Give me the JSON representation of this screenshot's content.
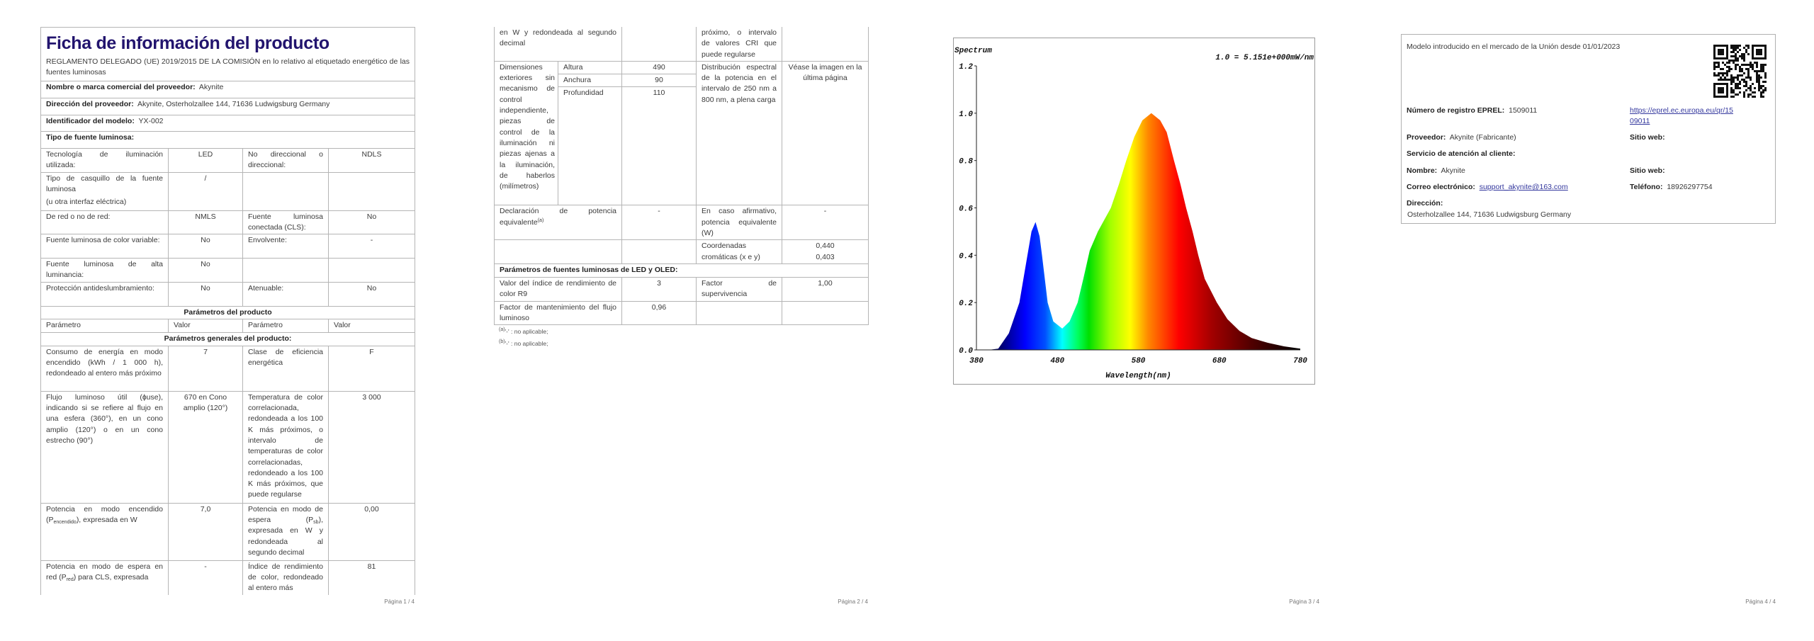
{
  "p1": {
    "title": "Ficha de información del producto",
    "regulation": "REGLAMENTO DELEGADO (UE) 2019/2015 DE LA COMISIÓN en lo relativo al etiquetado energético de las fuentes luminosas",
    "supplier_label": "Nombre o marca comercial del proveedor:",
    "supplier_value": "Akynite",
    "address_label": "Dirección del proveedor:",
    "address_value": "Akynite, Osterholzallee 144, 71636 Ludwigsburg Germany",
    "model_label": "Identificador del modelo:",
    "model_value": "YX-002",
    "type_label": "Tipo de fuente luminosa:",
    "type_rows": [
      [
        "Tecnología de iluminación utilizada:",
        "LED",
        "No direccional o direccional:",
        "NDLS"
      ],
      [
        "Tipo de casquillo de la fuente luminosa",
        "/",
        "",
        ""
      ],
      [
        "De red o no de red:",
        "NMLS",
        "Fuente luminosa conectada (CLS):",
        "No"
      ],
      [
        "Fuente luminosa de color variable:",
        "No",
        "Envolvente:",
        "-"
      ],
      [
        "Fuente luminosa de alta luminancia:",
        "No",
        "",
        ""
      ],
      [
        "Protección antideslumbramiento:",
        "No",
        "Atenuable:",
        "No"
      ]
    ],
    "cap_note": "(u otra interfaz eléctrica)",
    "params_title": "Parámetros del producto",
    "headers": [
      "Parámetro",
      "Valor",
      "Parámetro",
      "Valor"
    ],
    "general_title": "Parámetros generales del producto:",
    "gen": {
      "consumo": "Consumo de energía en modo encendido (kWh / 1 000 h), redondeado al entero más próximo",
      "consumo_val": "7",
      "clase": "Clase de eficiencia energética",
      "clase_val": "F",
      "flujo": "Flujo luminoso útil (ɸuse), indicando si se refiere al flujo en una esfera (360°), en un cono amplio (120°) o en un cono estrecho (90°)",
      "flujo_val": "670 en Cono amplio (120°)",
      "temp": "Temperatura de color correlacionada, redondeada a los 100 K más próximos, o intervalo de temperaturas de color correlacionadas, redondeado a los 100 K más próximos, que puede regularse",
      "temp_val": "3 000",
      "pon_pre": "Potencia en modo encendido (P",
      "pon_sub": "encendido",
      "pon_post": "), expresada en W",
      "pon_val": "7,0",
      "psb_pre": "Potencia en modo de espera (P",
      "psb_sub": "sb",
      "psb_post": "), expresada en W y redondeada al segundo decimal",
      "psb_val": "0,00",
      "pred_pre": "Potencia en modo de espera en red (P",
      "pred_sub": "red",
      "pred_post": ") para CLS, expresada",
      "pred_val": "-",
      "cri": "Índice de rendimiento de color, redondeado al entero más",
      "cri_val": "81"
    },
    "page_number": "Página 1 / 4"
  },
  "p2": {
    "cont_left": "en W y redondeada al segundo decimal",
    "cont_right": "próximo, o intervalo de valores CRI que puede regularse",
    "dim_label": "Dimensiones exteriores sin mecanismo de control independiente, piezas de control de la iluminación ni piezas ajenas a la iluminación, de haberlos (milímetros)",
    "dims": [
      [
        "Altura",
        "490"
      ],
      [
        "Anchura",
        "90"
      ],
      [
        "Profundidad",
        "110"
      ]
    ],
    "spd_label": "Distribución espectral de la potencia en el intervalo de 250 nm a 800 nm, a plena carga",
    "spd_value": "Véase la imagen en la última página",
    "equiv_label": "Declaración de potencia equivalente",
    "equiv_sup": "(a)",
    "equiv_val": "-",
    "equiv_w_label": "En caso afirmativo, potencia equivalente (W)",
    "equiv_w_val": "-",
    "coord_label": "Coordenadas cromáticas (x e y)",
    "coord_x": "0,440",
    "coord_y": "0,403",
    "led_title": "Parámetros de fuentes luminosas de LED y OLED:",
    "r9_label": "Valor del índice de rendimiento de color R9",
    "r9_val": "3",
    "surv_label": "Factor de supervivencia",
    "surv_val": "1,00",
    "maint_label": "Factor de mantenimiento del flujo luminoso",
    "maint_val": "0,96",
    "footnotes": [
      {
        "mark": "(a)",
        "text": "'-' : no aplicable;"
      },
      {
        "mark": "(b)",
        "text": "'-' : no aplicable;"
      }
    ],
    "page_number": "Página 2 / 4"
  },
  "p3": {
    "page_number": "Página 3 / 4"
  },
  "chart_data": {
    "type": "area",
    "ylabel": "Spectrum",
    "xlabel": "Wavelength(nm)",
    "annotation": "1.0 = 5.151e+000mW/nm",
    "xlim": [
      380,
      780
    ],
    "ylim": [
      0,
      1.2
    ],
    "xticks": [
      "380",
      "480",
      "580",
      "680",
      "780"
    ],
    "yticks": [
      "0.0",
      "0.2",
      "0.4",
      "0.6",
      "0.8",
      "1.0",
      "1.2"
    ],
    "grid": false,
    "fill": "visible-spectrum colour gradient",
    "x": [
      380,
      395,
      407,
      420,
      433,
      443,
      448,
      453,
      458,
      461,
      468,
      475,
      486,
      495,
      505,
      512,
      520,
      530,
      546,
      556,
      565,
      575,
      585,
      596,
      607,
      615,
      624,
      632,
      639,
      647,
      654,
      662,
      677,
      690,
      705,
      720,
      740,
      760,
      780
    ],
    "y": [
      0.0,
      0.0,
      0.005,
      0.07,
      0.2,
      0.4,
      0.5,
      0.54,
      0.48,
      0.4,
      0.2,
      0.12,
      0.09,
      0.12,
      0.2,
      0.3,
      0.42,
      0.5,
      0.6,
      0.7,
      0.8,
      0.9,
      0.97,
      1.0,
      0.97,
      0.92,
      0.8,
      0.7,
      0.6,
      0.5,
      0.4,
      0.3,
      0.2,
      0.13,
      0.08,
      0.05,
      0.03,
      0.015,
      0.005
    ]
  },
  "p4": {
    "intro": "Modelo introducido en el mercado de la Unión desde 01/01/2023",
    "eprel_label": "Número de registro EPREL:",
    "eprel_value": "1509011",
    "eprel_link_1": "https://eprel.ec.europa.eu/qr/15",
    "eprel_link_2": "09011",
    "supplier_label": "Proveedor:",
    "supplier_value": "Akynite (Fabricante)",
    "web_label": "Sitio web:",
    "service_label": "Servicio de atención al cliente:",
    "name_label": "Nombre:",
    "name_value": "Akynite",
    "web2_label": "Sitio web:",
    "email_label": "Correo electrónico:",
    "email_value": "support_akynite@163.com",
    "phone_label": "Teléfono:",
    "phone_value": "18926297754",
    "address_label": "Dirección:",
    "address_value": "Osterholzallee 144, 71636 Ludwigsburg Germany",
    "page_number": "Página 4 / 4"
  }
}
